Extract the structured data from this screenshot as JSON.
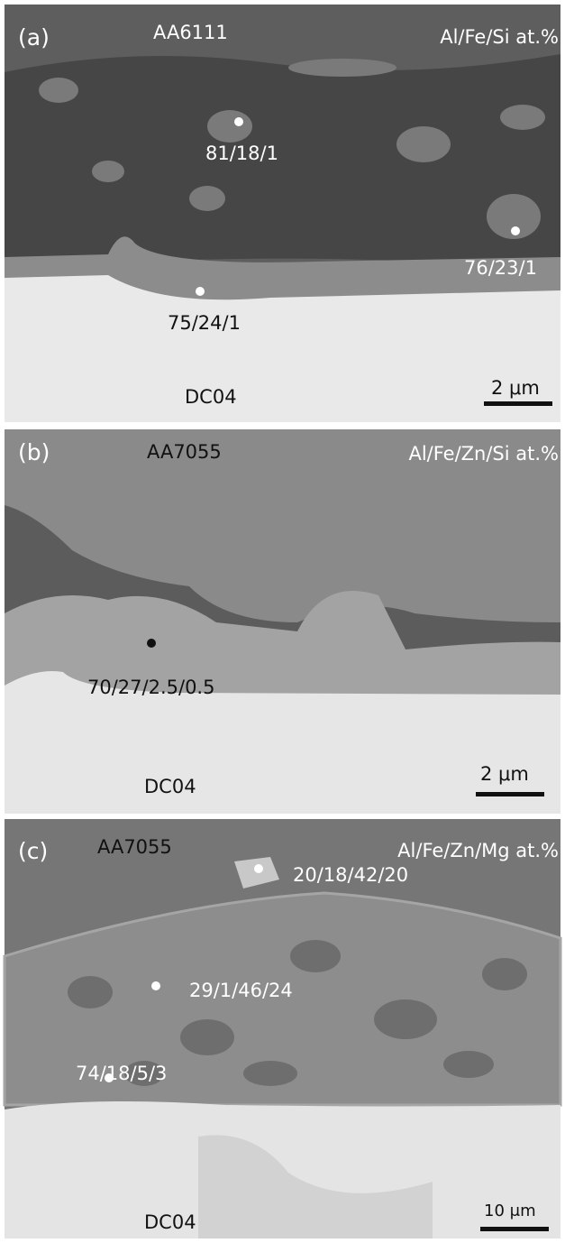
{
  "panels": [
    {
      "label": "(a)",
      "matrix": "AA6111",
      "composition": "Al/Fe/Si at.%",
      "points": [
        "81/18/1",
        "76/23/1",
        "75/24/1"
      ],
      "substrate": "DC04",
      "scale_bar": "2 μm"
    },
    {
      "label": "(b)",
      "matrix": "AA7055",
      "composition": "Al/Fe/Zn/Si at.%",
      "points": [
        "70/27/2.5/0.5"
      ],
      "substrate": "DC04",
      "scale_bar": "2 μm"
    },
    {
      "label": "(c)",
      "matrix": "AA7055",
      "composition": "Al/Fe/Zn/Mg at.%",
      "points": [
        "20/18/42/20",
        "29/1/46/24",
        "74/18/5/3"
      ],
      "substrate": "DC04",
      "scale_bar": "10 μm"
    }
  ]
}
